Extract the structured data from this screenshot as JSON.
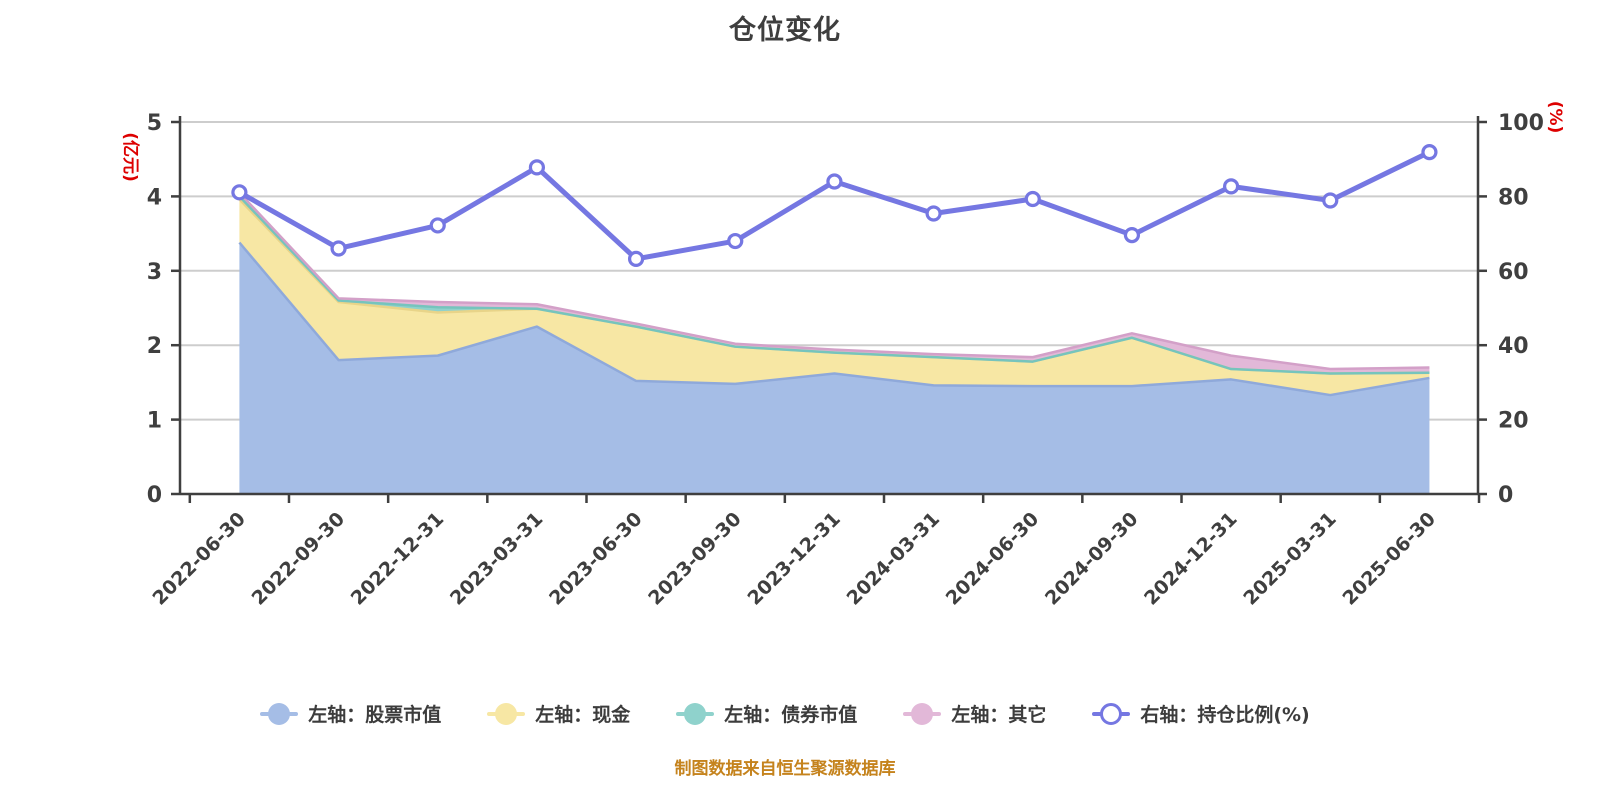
{
  "title": "仓位变化",
  "footer": "制图数据来自恒生聚源数据库",
  "left_axis": {
    "name": "(亿元)",
    "name_color": "#dd0000",
    "ticks": [
      "0",
      "1",
      "2",
      "3",
      "4",
      "5"
    ],
    "min": 0,
    "max": 5
  },
  "right_axis": {
    "name": "(%)",
    "name_color": "#dd0000",
    "ticks": [
      "0",
      "20",
      "40",
      "60",
      "80",
      "100"
    ],
    "min": 0,
    "max": 100
  },
  "colors": {
    "axis_line": "#3f3f3f",
    "tick_text": "#3f3f3f",
    "gridline": "#cdcdcd",
    "title_text": "#3e3e3e",
    "footer_text": "#c5831d",
    "axis_name_red": "#dd0000",
    "line_series": "#7577e2"
  },
  "chart_data": {
    "type": "area",
    "subtype": "stacked-area-with-line",
    "grid": true,
    "legend_position": "bottom",
    "xlabel": "",
    "ylabel_left": "(亿元)",
    "ylabel_right": "(%)",
    "ylim_left": [
      0,
      5
    ],
    "ylim_right": [
      0,
      100
    ],
    "categories": [
      "2022-06-30",
      "2022-09-30",
      "2022-12-31",
      "2023-03-31",
      "2023-06-30",
      "2023-09-30",
      "2023-12-31",
      "2024-03-31",
      "2024-06-30",
      "2024-09-30",
      "2024-12-31",
      "2025-03-31",
      "2025-06-30"
    ],
    "series": [
      {
        "name": "左轴：股票市值",
        "type": "area",
        "axis": "left",
        "stack": true,
        "fill": "#a5bde6",
        "edge": "#8fa9da",
        "values": [
          3.38,
          1.8,
          1.86,
          2.25,
          1.52,
          1.48,
          1.62,
          1.46,
          1.45,
          1.45,
          1.54,
          1.33,
          1.56
        ]
      },
      {
        "name": "左轴：现金",
        "type": "area",
        "axis": "left",
        "stack": true,
        "fill": "#f7e7a4",
        "edge": "#e8d489",
        "values": [
          0.58,
          0.78,
          0.58,
          0.24,
          0.73,
          0.5,
          0.28,
          0.38,
          0.33,
          0.65,
          0.14,
          0.29,
          0.07
        ]
      },
      {
        "name": "左轴：债券市值",
        "type": "area",
        "axis": "left",
        "stack": true,
        "fill": "#8fd2cc",
        "edge": "#76c4bd",
        "values": [
          0.04,
          0.02,
          0.07,
          0,
          0,
          0,
          0,
          0,
          0,
          0,
          0,
          0,
          0
        ]
      },
      {
        "name": "左轴：其它",
        "type": "area",
        "axis": "left",
        "stack": true,
        "fill": "#e2b8d8",
        "edge": "#d3a0c8",
        "values": [
          0.05,
          0.03,
          0.07,
          0.06,
          0.04,
          0.04,
          0.04,
          0.04,
          0.06,
          0.06,
          0.18,
          0.06,
          0.07
        ]
      },
      {
        "name": "右轴：持仓比例(%)",
        "type": "line",
        "axis": "right",
        "color": "#7577e2",
        "marker_fill": "#ffffff",
        "values": [
          81.1,
          66.0,
          72.2,
          87.8,
          63.2,
          68.0,
          84.0,
          75.4,
          79.3,
          69.6,
          82.7,
          78.9,
          91.9
        ]
      }
    ]
  }
}
